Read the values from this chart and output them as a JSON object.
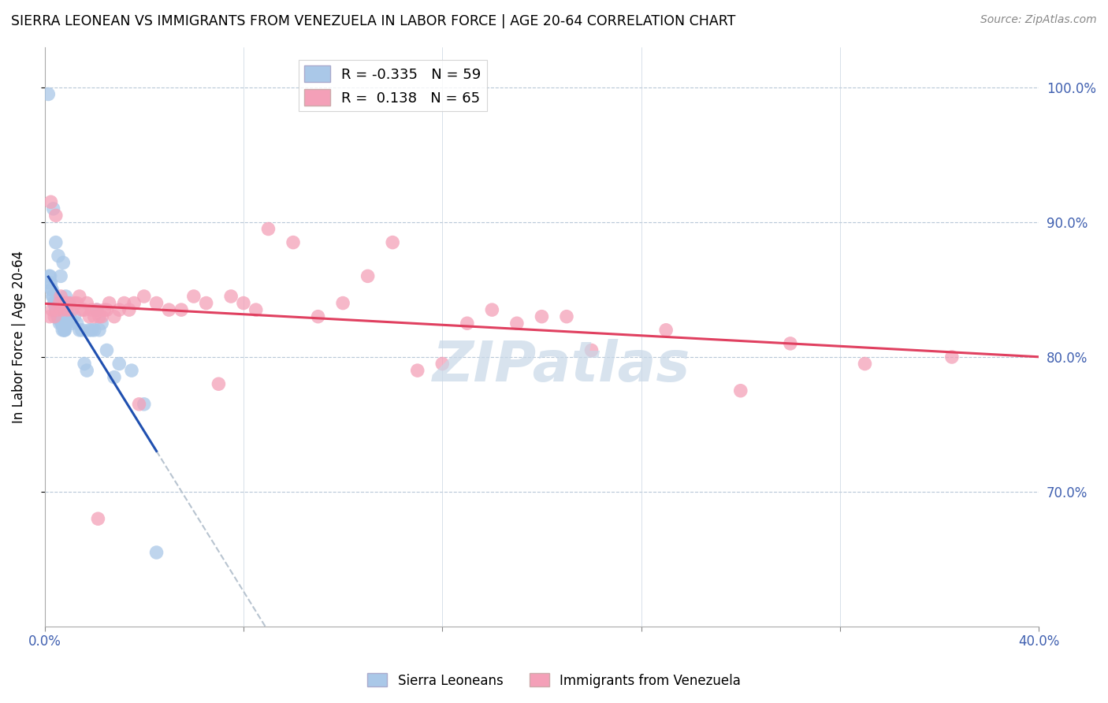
{
  "title": "SIERRA LEONEAN VS IMMIGRANTS FROM VENEZUELA IN LABOR FORCE | AGE 20-64 CORRELATION CHART",
  "source": "Source: ZipAtlas.com",
  "ylabel": "In Labor Force | Age 20-64",
  "xlim": [
    0.0,
    40.0
  ],
  "ylim": [
    60.0,
    103.0
  ],
  "yticks": [
    70.0,
    80.0,
    90.0,
    100.0
  ],
  "legend_blue_r": "-0.335",
  "legend_blue_n": "59",
  "legend_pink_r": "0.138",
  "legend_pink_n": "65",
  "blue_color": "#aac8e8",
  "pink_color": "#f4a0b8",
  "blue_line_color": "#2050b0",
  "pink_line_color": "#e04060",
  "gray_dashed_color": "#b8c4d0",
  "axis_color": "#4060b0",
  "watermark": "ZIPatlas",
  "watermark_color": "#c8d8e8",
  "blue_scatter_x": [
    0.15,
    0.18,
    0.2,
    0.22,
    0.25,
    0.28,
    0.3,
    0.32,
    0.35,
    0.38,
    0.4,
    0.42,
    0.45,
    0.48,
    0.5,
    0.52,
    0.55,
    0.58,
    0.6,
    0.62,
    0.65,
    0.68,
    0.7,
    0.72,
    0.75,
    0.78,
    0.8,
    0.82,
    0.85,
    0.88,
    0.9,
    0.95,
    1.0,
    1.05,
    1.1,
    1.2,
    1.3,
    1.4,
    1.5,
    1.6,
    1.7,
    1.8,
    1.9,
    2.0,
    2.1,
    2.2,
    2.3,
    2.5,
    2.8,
    3.0,
    3.5,
    4.0,
    4.5,
    0.35,
    0.45,
    0.55,
    0.65,
    0.75,
    0.85
  ],
  "blue_scatter_y": [
    99.5,
    86.0,
    85.5,
    86.0,
    85.5,
    85.0,
    85.0,
    84.5,
    84.5,
    84.0,
    84.0,
    83.8,
    83.5,
    83.5,
    83.2,
    83.0,
    83.0,
    82.8,
    82.5,
    83.0,
    82.8,
    82.5,
    82.5,
    82.0,
    82.5,
    82.0,
    82.0,
    82.0,
    83.5,
    83.0,
    82.5,
    84.0,
    83.0,
    82.8,
    82.5,
    83.0,
    82.5,
    82.0,
    82.0,
    79.5,
    79.0,
    82.0,
    82.0,
    82.0,
    83.5,
    82.0,
    82.5,
    80.5,
    78.5,
    79.5,
    79.0,
    76.5,
    65.5,
    91.0,
    88.5,
    87.5,
    86.0,
    87.0,
    84.5
  ],
  "pink_scatter_x": [
    0.2,
    0.3,
    0.4,
    0.5,
    0.6,
    0.7,
    0.8,
    0.9,
    1.0,
    1.1,
    1.2,
    1.3,
    1.4,
    1.5,
    1.6,
    1.7,
    1.8,
    1.9,
    2.0,
    2.1,
    2.2,
    2.3,
    2.4,
    2.5,
    2.6,
    2.8,
    3.0,
    3.2,
    3.4,
    3.6,
    3.8,
    4.0,
    4.5,
    5.0,
    5.5,
    6.0,
    6.5,
    7.0,
    7.5,
    8.0,
    8.5,
    9.0,
    10.0,
    11.0,
    12.0,
    13.0,
    14.0,
    15.0,
    16.0,
    17.0,
    18.0,
    19.0,
    20.0,
    21.0,
    22.0,
    25.0,
    28.0,
    30.0,
    33.0,
    36.5,
    0.25,
    0.45,
    0.65,
    0.85,
    2.15
  ],
  "pink_scatter_y": [
    83.0,
    83.5,
    83.0,
    83.5,
    84.0,
    83.5,
    84.0,
    83.5,
    84.0,
    83.5,
    84.0,
    84.0,
    84.5,
    83.5,
    83.5,
    84.0,
    83.0,
    83.5,
    83.0,
    83.5,
    83.0,
    83.0,
    83.5,
    83.5,
    84.0,
    83.0,
    83.5,
    84.0,
    83.5,
    84.0,
    76.5,
    84.5,
    84.0,
    83.5,
    83.5,
    84.5,
    84.0,
    78.0,
    84.5,
    84.0,
    83.5,
    89.5,
    88.5,
    83.0,
    84.0,
    86.0,
    88.5,
    79.0,
    79.5,
    82.5,
    83.5,
    82.5,
    83.0,
    83.0,
    80.5,
    82.0,
    77.5,
    81.0,
    79.5,
    80.0,
    91.5,
    90.5,
    84.5,
    84.0,
    68.0
  ],
  "xtick_positions": [
    0.0,
    8.0,
    16.0,
    24.0,
    32.0,
    40.0
  ],
  "xtick_show": [
    true,
    false,
    false,
    false,
    false,
    true
  ]
}
